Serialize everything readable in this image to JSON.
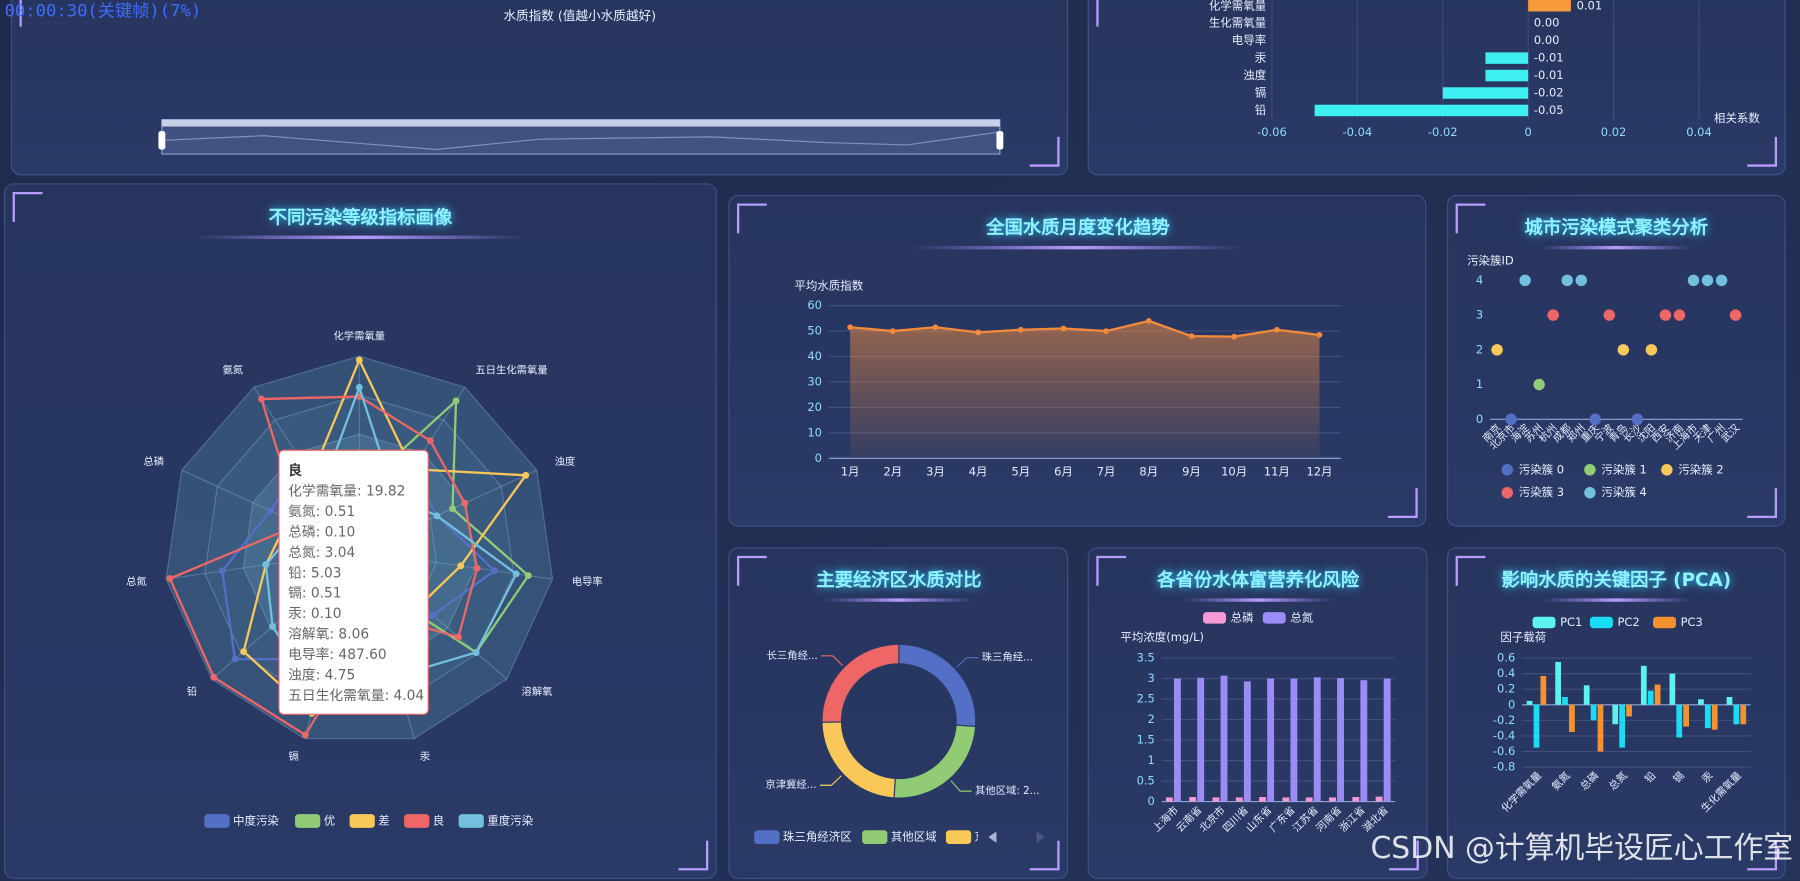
{
  "overlay": "00:00:30(关键帧)(7%)",
  "watermark": "CSDN @计算机毕设匠心工作室",
  "chart_data": [
    {
      "type": "line",
      "title": "水质指数 (值越小水质越好)",
      "datazoom": true
    },
    {
      "type": "bar",
      "orientation": "horizontal",
      "categories": [
        "铅",
        "镉",
        "浊度",
        "汞",
        "电导率",
        "生化需氧量",
        "化学需氧量"
      ],
      "values": [
        -0.05,
        -0.02,
        -0.01,
        -0.01,
        0,
        0,
        0.01
      ],
      "value_labels": [
        "-0.05",
        "-0.02",
        "-0.01",
        "-0.01",
        "0.00",
        "0.00",
        "0.01"
      ],
      "color": "#3ff0f2",
      "positive_color": "#f79a3a",
      "xlim": [
        -0.06,
        0.04
      ],
      "xticks": [
        -0.06,
        -0.04,
        -0.02,
        0,
        0.02,
        0.04
      ],
      "x_label": "相关系数",
      "grid": true
    },
    {
      "type": "radar",
      "title": "不同污染等级指标画像",
      "indicators": [
        {
          "name": "化学需氧量",
          "max": 25
        },
        {
          "name": "氨氮",
          "max": 0.55
        },
        {
          "name": "总磷",
          "max": 0.3
        },
        {
          "name": "总氮",
          "max": 3.1
        },
        {
          "name": "铅",
          "max": 5.1
        },
        {
          "name": "镉",
          "max": 0.52
        },
        {
          "name": "汞",
          "max": 0.3
        },
        {
          "name": "溶解氧",
          "max": 12
        },
        {
          "name": "电导率",
          "max": 800
        },
        {
          "name": "浊度",
          "max": 8
        },
        {
          "name": "五日生化需氧量",
          "max": 6
        }
      ],
      "series": [
        {
          "name": "中度污染",
          "color": "#5470c6",
          "values": [
            12,
            0.3,
            0.15,
            2.2,
            4.3,
            0.3,
            0.15,
            6,
            560,
            3.5,
            3
          ]
        },
        {
          "name": "优",
          "color": "#91cc75",
          "values": [
            8,
            0.15,
            0.05,
            1.2,
            1.5,
            0.2,
            0.05,
            9.5,
            700,
            4.2,
            5.5
          ]
        },
        {
          "name": "差",
          "color": "#fac858",
          "values": [
            24.5,
            0.25,
            0.12,
            1.5,
            4,
            0.45,
            0.2,
            5,
            420,
            7.5,
            3
          ]
        },
        {
          "name": "良",
          "color": "#ee6666",
          "values": [
            19.82,
            0.51,
            0.1,
            3.04,
            5.03,
            0.51,
            0.1,
            8.06,
            487.6,
            4.75,
            4.04
          ]
        },
        {
          "name": "重度污染",
          "color": "#73c0de",
          "values": [
            21,
            0.2,
            0.1,
            1.5,
            3,
            0.4,
            0.2,
            9.5,
            650,
            3.5,
            2
          ]
        }
      ],
      "tooltip": {
        "title": "良",
        "lines": [
          "化学需氧量: 19.82",
          "氨氮: 0.51",
          "总磷: 0.10",
          "总氮: 3.04",
          "铅: 5.03",
          "镉: 0.51",
          "汞: 0.10",
          "溶解氧: 8.06",
          "电导率: 487.60",
          "浊度: 4.75",
          "五日生化需氧量: 4.04"
        ]
      }
    },
    {
      "type": "line",
      "title": "全国水质月度变化趋势",
      "y_label": "平均水质指数",
      "categories": [
        "1月",
        "2月",
        "3月",
        "4月",
        "5月",
        "6月",
        "7月",
        "8月",
        "9月",
        "10月",
        "11月",
        "12月"
      ],
      "values": [
        51.5,
        50,
        51.5,
        49.5,
        50.5,
        51,
        50,
        54,
        48,
        47.8,
        50.5,
        48.5
      ],
      "color": "#f28b3c",
      "ylim": [
        0,
        60
      ],
      "yticks": [
        0,
        10,
        20,
        30,
        40,
        50,
        60
      ],
      "grid": true
    },
    {
      "type": "scatter",
      "title": "城市污染模式聚类分析",
      "y_label": "污染簇ID",
      "categories": [
        "南京",
        "北京市",
        "海淀",
        "苏州",
        "杭州",
        "成都",
        "郑州",
        "重庆",
        "宁波",
        "青岛",
        "长沙",
        "沈阳",
        "西安",
        "济南",
        "上海市",
        "天津",
        "广州",
        "武汉"
      ],
      "series": [
        {
          "name": "污染簇 0",
          "color": "#5470c6",
          "values": [
            null,
            0,
            null,
            null,
            null,
            null,
            null,
            0,
            null,
            null,
            0,
            null,
            null,
            null,
            null,
            null,
            null,
            null
          ]
        },
        {
          "name": "污染簇 1",
          "color": "#91cc75",
          "values": [
            null,
            null,
            null,
            1,
            null,
            null,
            null,
            null,
            null,
            null,
            null,
            null,
            null,
            null,
            null,
            null,
            null,
            null
          ]
        },
        {
          "name": "污染簇 2",
          "color": "#fac858",
          "values": [
            2,
            null,
            null,
            null,
            null,
            null,
            null,
            null,
            null,
            2,
            null,
            2,
            null,
            null,
            null,
            null,
            null,
            null
          ]
        },
        {
          "name": "污染簇 3",
          "color": "#ee6666",
          "values": [
            null,
            null,
            null,
            null,
            3,
            null,
            null,
            null,
            3,
            null,
            null,
            null,
            3,
            3,
            null,
            null,
            null,
            3
          ]
        },
        {
          "name": "污染簇 4",
          "color": "#73c0de",
          "values": [
            null,
            null,
            4,
            null,
            null,
            4,
            4,
            null,
            null,
            null,
            null,
            null,
            null,
            null,
            4,
            4,
            4,
            null
          ]
        }
      ],
      "ylim": [
        0,
        4
      ],
      "yticks": [
        0,
        1,
        2,
        3,
        4
      ],
      "grid": false
    },
    {
      "type": "pie",
      "title": "主要经济区水质对比",
      "donut": true,
      "categories": [
        "珠三角经济区",
        "其他区域",
        "京津冀经济区",
        "长三角经济区"
      ],
      "values": [
        26.1,
        24.9,
        23.8,
        25.2
      ],
      "labels": [
        "珠三角经...",
        "其他区域: 2...",
        "京津冀经...",
        "长三角经..."
      ],
      "colors": [
        "#5470c6",
        "#91cc75",
        "#fac858",
        "#ee6666"
      ]
    },
    {
      "type": "bar",
      "title": "各省份水体富营养化风险",
      "y_label": "平均浓度(mg/L)",
      "categories": [
        "上海市",
        "云南省",
        "北京市",
        "四川省",
        "山东省",
        "广东省",
        "江苏省",
        "河南省",
        "浙江省",
        "湖北省"
      ],
      "series": [
        {
          "name": "总磷",
          "color": "#f59ad6",
          "values": [
            0.1,
            0.11,
            0.1,
            0.1,
            0.11,
            0.1,
            0.1,
            0.1,
            0.11,
            0.12
          ]
        },
        {
          "name": "总氮",
          "color": "#9b8cf5",
          "values": [
            3,
            3.02,
            3.07,
            2.93,
            3,
            3,
            3.03,
            3.01,
            2.96,
            3
          ]
        }
      ],
      "ylim": [
        0,
        3.5
      ],
      "yticks": [
        0,
        0.5,
        1,
        1.5,
        2,
        2.5,
        3,
        3.5
      ],
      "grid": true
    },
    {
      "type": "bar",
      "title": "影响水质的关键因子 (PCA)",
      "y_label": "因子载荷",
      "categories": [
        "化学需氧量",
        "氨氮",
        "总磷",
        "总氮",
        "铅",
        "镉",
        "汞",
        "生化需氧量"
      ],
      "series": [
        {
          "name": "PC1",
          "color": "#5ef2ee",
          "values": [
            0.05,
            0.55,
            0.25,
            -0.25,
            0.5,
            0.4,
            0.07,
            0.1
          ]
        },
        {
          "name": "PC2",
          "color": "#19dcf7",
          "values": [
            -0.55,
            0.1,
            -0.2,
            -0.55,
            0.18,
            -0.42,
            -0.3,
            -0.25
          ]
        },
        {
          "name": "PC3",
          "color": "#f5922f",
          "values": [
            0.37,
            -0.35,
            -0.6,
            -0.15,
            0.26,
            -0.28,
            -0.32,
            -0.25
          ]
        }
      ],
      "ylim": [
        -0.8,
        0.6
      ],
      "yticks": [
        -0.8,
        -0.6,
        -0.4,
        -0.2,
        0,
        0.2,
        0.4,
        0.6
      ],
      "grid": true
    }
  ]
}
